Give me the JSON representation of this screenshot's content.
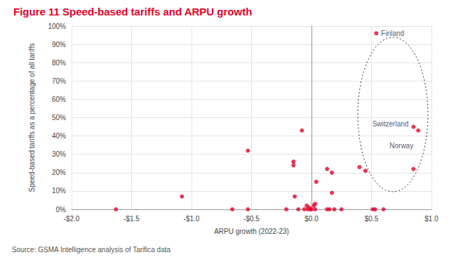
{
  "chart_data": {
    "type": "scatter",
    "title": "Figure 11 Speed-based tariffs and ARPU growth",
    "x_label": "ARPU growth (2022-23)",
    "y_label": "Speed-based tariffs as a percentage of all tariffs",
    "source": "Source: GSMA Intelligence analysis of Tarifica data",
    "color": "#e4032e",
    "marker": "circle",
    "grid": true,
    "x": [
      -1.63,
      -1.08,
      -0.66,
      -0.53,
      -0.53,
      -0.21,
      -0.15,
      -0.15,
      -0.14,
      -0.11,
      -0.08,
      -0.06,
      -0.04,
      -0.03,
      -0.02,
      -0.01,
      0.0,
      0.02,
      0.03,
      0.03,
      0.04,
      0.13,
      0.13,
      0.15,
      0.17,
      0.17,
      0.19,
      0.25,
      0.4,
      0.45,
      0.51,
      0.53,
      0.54,
      0.6,
      0.85,
      0.85,
      0.89
    ],
    "values": [
      0,
      7,
      0,
      0,
      32,
      0,
      26,
      24,
      7,
      0,
      43,
      0,
      2,
      0,
      1,
      0,
      0,
      2,
      3,
      0,
      15,
      22,
      0,
      0,
      20,
      9,
      0,
      0,
      23,
      21,
      0,
      0,
      96,
      0,
      22,
      45,
      43
    ],
    "annotations": [
      {
        "text": "Finland",
        "x": 0.54,
        "y": 96
      },
      {
        "text": "Switzerland",
        "x": 0.85,
        "y": 45
      },
      {
        "text": "Norway",
        "x": 0.89,
        "y": 43
      }
    ],
    "xlim": [
      -2,
      1
    ],
    "xticks": [
      {
        "value": -2,
        "label": "-$2.0"
      },
      {
        "value": -1.5,
        "label": "-$1.5"
      },
      {
        "value": -1,
        "label": "-$1.0"
      },
      {
        "value": -0.5,
        "label": "-$0.5"
      },
      {
        "value": 0,
        "label": "$0.0"
      },
      {
        "value": 0.5,
        "label": "$0.5"
      },
      {
        "value": 1,
        "label": "$1.0"
      }
    ],
    "ylim": [
      0,
      100
    ],
    "yticks": [
      {
        "value": 0,
        "label": "0%"
      },
      {
        "value": 10,
        "label": "10%"
      },
      {
        "value": 20,
        "label": "20%"
      },
      {
        "value": 30,
        "label": "30%"
      },
      {
        "value": 40,
        "label": "40%"
      },
      {
        "value": 50,
        "label": "50%"
      },
      {
        "value": 60,
        "label": "60%"
      },
      {
        "value": 70,
        "label": "70%"
      },
      {
        "value": 80,
        "label": "80%"
      },
      {
        "value": 90,
        "label": "90%"
      },
      {
        "value": 100,
        "label": "100%"
      }
    ]
  }
}
